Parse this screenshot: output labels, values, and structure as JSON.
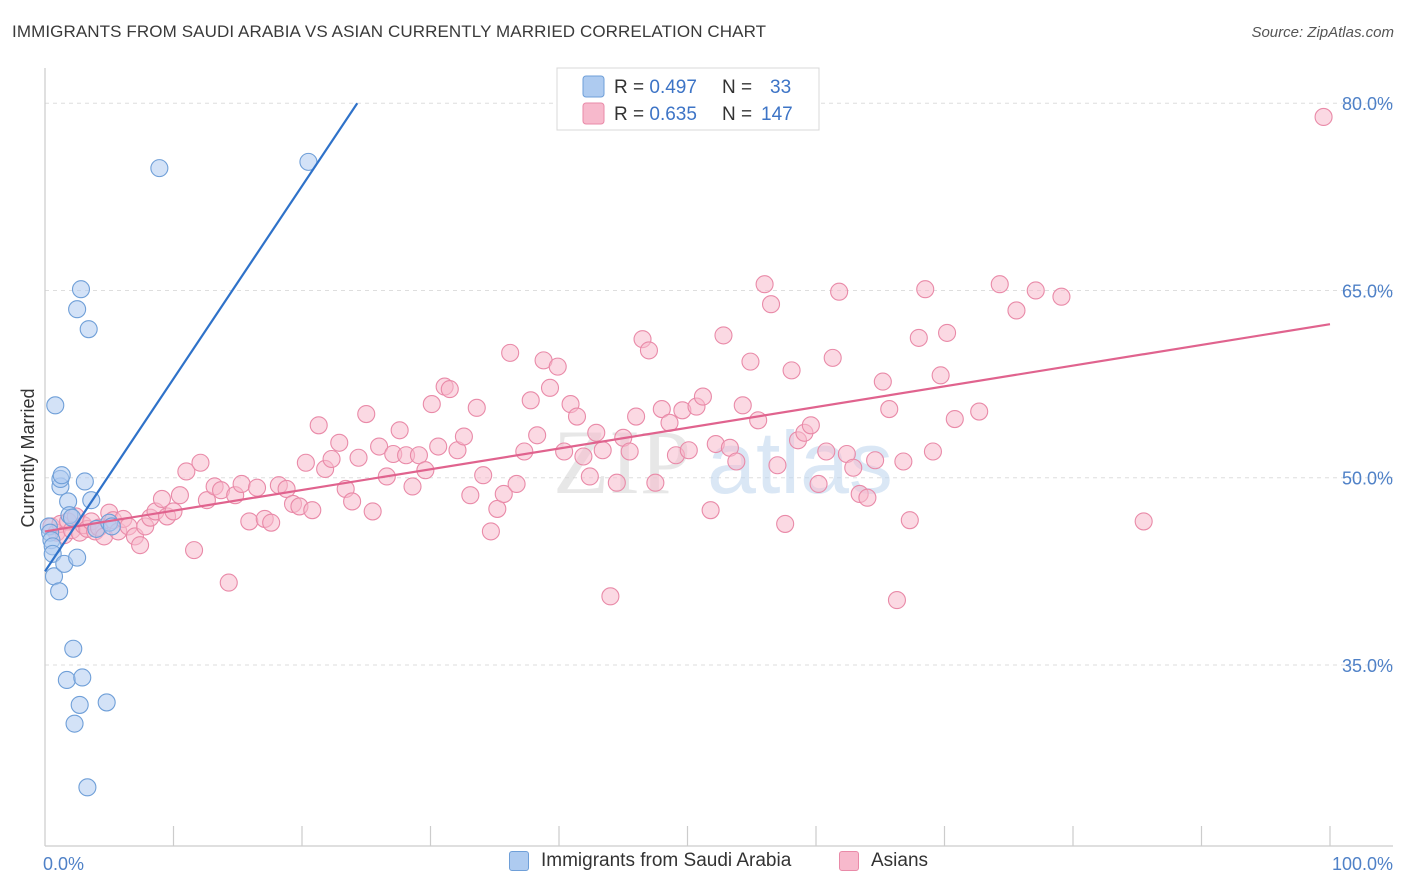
{
  "header": {
    "title": "IMMIGRANTS FROM SAUDI ARABIA VS ASIAN CURRENTLY MARRIED CORRELATION CHART",
    "source": "Source: ZipAtlas.com"
  },
  "watermark": {
    "text_zip": "ZIP",
    "text_atlas": "atlas"
  },
  "colors": {
    "blue_fill": "#aecbf0",
    "blue_stroke": "#6f9fd8",
    "blue_line": "#2f72c9",
    "pink_fill": "#f7b9cc",
    "pink_stroke": "#e98aa8",
    "pink_line": "#e0638e",
    "axis_label": "#4f81c7",
    "grid": "#dedede"
  },
  "legend_top": {
    "rows": [
      {
        "r_label": "R = ",
        "r_value": "0.497",
        "n_label": "N = ",
        "n_value": "33"
      },
      {
        "r_label": "R = ",
        "r_value": "0.635",
        "n_label": "N = ",
        "n_value": "147"
      }
    ]
  },
  "chart_data": {
    "type": "scatter",
    "title": "IMMIGRANTS FROM SAUDI ARABIA VS ASIAN CURRENTLY MARRIED CORRELATION CHART",
    "xlabel": "",
    "ylabel": "Currently Married",
    "xlim": [
      0,
      100
    ],
    "ylim": [
      20.5,
      82.5
    ],
    "x_tick_labels": [
      {
        "value": 0,
        "label": "0.0%"
      },
      {
        "value": 100,
        "label": "100.0%"
      }
    ],
    "y_tick_labels": [
      {
        "value": 35,
        "label": "35.0%"
      },
      {
        "value": 50,
        "label": "50.0%"
      },
      {
        "value": 65,
        "label": "65.0%"
      },
      {
        "value": 80,
        "label": "80.0%"
      }
    ],
    "grid": true,
    "legend_position": "top-center",
    "series": [
      {
        "name": "Immigrants from Saudi Arabia",
        "color": "blue",
        "R": 0.497,
        "N": 33,
        "trend": {
          "x1": 0,
          "y1": 42.5,
          "x2": 24.3,
          "y2": 80
        },
        "points": [
          [
            0.3,
            46.1
          ],
          [
            0.4,
            45.6
          ],
          [
            0.5,
            45.0
          ],
          [
            0.6,
            44.5
          ],
          [
            0.6,
            43.9
          ],
          [
            0.7,
            42.1
          ],
          [
            0.8,
            55.8
          ],
          [
            1.1,
            40.9
          ],
          [
            1.2,
            49.3
          ],
          [
            1.2,
            49.9
          ],
          [
            1.3,
            50.2
          ],
          [
            1.5,
            43.1
          ],
          [
            1.7,
            33.8
          ],
          [
            1.8,
            48.1
          ],
          [
            1.9,
            47.0
          ],
          [
            2.1,
            46.8
          ],
          [
            2.2,
            36.3
          ],
          [
            2.3,
            30.3
          ],
          [
            2.5,
            43.6
          ],
          [
            2.5,
            63.5
          ],
          [
            2.7,
            31.8
          ],
          [
            2.8,
            65.1
          ],
          [
            2.9,
            34.0
          ],
          [
            3.1,
            49.7
          ],
          [
            3.3,
            25.2
          ],
          [
            3.4,
            61.9
          ],
          [
            3.6,
            48.2
          ],
          [
            4.0,
            45.9
          ],
          [
            4.8,
            32.0
          ],
          [
            5.0,
            46.4
          ],
          [
            5.2,
            46.1
          ],
          [
            8.9,
            74.8
          ],
          [
            20.5,
            75.3
          ]
        ]
      },
      {
        "name": "Asians",
        "color": "pink",
        "R": 0.635,
        "N": 147,
        "trend": {
          "x1": 0,
          "y1": 45.7,
          "x2": 100,
          "y2": 62.3
        },
        "points": [
          [
            0.5,
            46.1
          ],
          [
            0.9,
            45.6
          ],
          [
            1.2,
            46.3
          ],
          [
            1.5,
            45.4
          ],
          [
            1.8,
            46.5
          ],
          [
            2.1,
            45.8
          ],
          [
            2.4,
            46.9
          ],
          [
            2.7,
            45.6
          ],
          [
            3.0,
            46.2
          ],
          [
            3.3,
            45.9
          ],
          [
            3.6,
            46.5
          ],
          [
            3.9,
            45.7
          ],
          [
            4.2,
            46.0
          ],
          [
            4.6,
            45.3
          ],
          [
            5.0,
            47.2
          ],
          [
            5.3,
            46.6
          ],
          [
            5.7,
            45.7
          ],
          [
            6.1,
            46.7
          ],
          [
            6.5,
            46.1
          ],
          [
            7.0,
            45.3
          ],
          [
            7.4,
            44.6
          ],
          [
            7.8,
            46.1
          ],
          [
            8.2,
            46.8
          ],
          [
            8.6,
            47.3
          ],
          [
            9.1,
            48.3
          ],
          [
            9.5,
            46.9
          ],
          [
            10.0,
            47.3
          ],
          [
            10.5,
            48.6
          ],
          [
            11.0,
            50.5
          ],
          [
            11.6,
            44.2
          ],
          [
            12.1,
            51.2
          ],
          [
            12.6,
            48.2
          ],
          [
            13.2,
            49.3
          ],
          [
            13.7,
            49.0
          ],
          [
            14.3,
            41.6
          ],
          [
            14.8,
            48.6
          ],
          [
            15.3,
            49.5
          ],
          [
            15.9,
            46.5
          ],
          [
            16.5,
            49.2
          ],
          [
            17.1,
            46.7
          ],
          [
            17.6,
            46.4
          ],
          [
            18.2,
            49.4
          ],
          [
            18.8,
            49.1
          ],
          [
            19.3,
            47.9
          ],
          [
            19.8,
            47.7
          ],
          [
            20.3,
            51.2
          ],
          [
            20.8,
            47.4
          ],
          [
            21.3,
            54.2
          ],
          [
            21.8,
            50.7
          ],
          [
            22.3,
            51.5
          ],
          [
            22.9,
            52.8
          ],
          [
            23.4,
            49.1
          ],
          [
            23.9,
            48.1
          ],
          [
            24.4,
            51.6
          ],
          [
            25.0,
            55.1
          ],
          [
            25.5,
            47.3
          ],
          [
            26.0,
            52.5
          ],
          [
            26.6,
            50.1
          ],
          [
            27.1,
            51.9
          ],
          [
            27.6,
            53.8
          ],
          [
            28.1,
            51.8
          ],
          [
            28.6,
            49.3
          ],
          [
            29.1,
            51.8
          ],
          [
            29.6,
            50.6
          ],
          [
            30.1,
            55.9
          ],
          [
            30.6,
            52.5
          ],
          [
            31.1,
            57.3
          ],
          [
            31.5,
            57.1
          ],
          [
            32.1,
            52.2
          ],
          [
            32.6,
            53.3
          ],
          [
            33.1,
            48.6
          ],
          [
            33.6,
            55.6
          ],
          [
            34.1,
            50.2
          ],
          [
            34.7,
            45.7
          ],
          [
            35.2,
            47.5
          ],
          [
            35.7,
            48.7
          ],
          [
            36.2,
            60.0
          ],
          [
            36.7,
            49.5
          ],
          [
            37.3,
            52.1
          ],
          [
            37.8,
            56.2
          ],
          [
            38.3,
            53.4
          ],
          [
            38.8,
            59.4
          ],
          [
            39.3,
            57.2
          ],
          [
            39.9,
            58.9
          ],
          [
            40.4,
            52.1
          ],
          [
            40.9,
            55.9
          ],
          [
            41.4,
            54.9
          ],
          [
            41.9,
            51.7
          ],
          [
            42.4,
            50.1
          ],
          [
            42.9,
            53.6
          ],
          [
            43.4,
            52.2
          ],
          [
            44.0,
            40.5
          ],
          [
            44.5,
            49.6
          ],
          [
            45.0,
            53.2
          ],
          [
            45.5,
            52.1
          ],
          [
            46.0,
            54.9
          ],
          [
            46.5,
            61.1
          ],
          [
            47.0,
            60.2
          ],
          [
            47.5,
            49.6
          ],
          [
            48.0,
            55.5
          ],
          [
            48.6,
            54.4
          ],
          [
            49.1,
            51.8
          ],
          [
            49.6,
            55.4
          ],
          [
            50.1,
            52.2
          ],
          [
            50.7,
            55.7
          ],
          [
            51.2,
            56.5
          ],
          [
            51.8,
            47.4
          ],
          [
            52.2,
            52.7
          ],
          [
            52.8,
            61.4
          ],
          [
            53.3,
            52.4
          ],
          [
            53.8,
            51.3
          ],
          [
            54.3,
            55.8
          ],
          [
            54.9,
            59.3
          ],
          [
            55.5,
            54.6
          ],
          [
            56.0,
            65.5
          ],
          [
            56.5,
            63.9
          ],
          [
            57.0,
            51.0
          ],
          [
            57.6,
            46.3
          ],
          [
            58.1,
            58.6
          ],
          [
            58.6,
            53.0
          ],
          [
            59.1,
            53.6
          ],
          [
            59.6,
            54.2
          ],
          [
            60.2,
            49.5
          ],
          [
            60.8,
            52.1
          ],
          [
            61.3,
            59.6
          ],
          [
            61.8,
            64.9
          ],
          [
            62.4,
            51.9
          ],
          [
            62.9,
            50.8
          ],
          [
            63.4,
            48.7
          ],
          [
            64.0,
            48.4
          ],
          [
            64.6,
            51.4
          ],
          [
            65.2,
            57.7
          ],
          [
            65.7,
            55.5
          ],
          [
            66.3,
            40.2
          ],
          [
            66.8,
            51.3
          ],
          [
            67.3,
            46.6
          ],
          [
            68.0,
            61.2
          ],
          [
            68.5,
            65.1
          ],
          [
            69.1,
            52.1
          ],
          [
            69.7,
            58.2
          ],
          [
            70.2,
            61.6
          ],
          [
            70.8,
            54.7
          ],
          [
            72.7,
            55.3
          ],
          [
            74.3,
            65.5
          ],
          [
            75.6,
            63.4
          ],
          [
            77.1,
            65.0
          ],
          [
            79.1,
            64.5
          ],
          [
            85.5,
            46.5
          ],
          [
            99.5,
            78.9
          ]
        ]
      }
    ]
  },
  "legend_bottom": {
    "items": [
      {
        "label": "Immigrants from Saudi Arabia"
      },
      {
        "label": "Asians"
      }
    ]
  }
}
